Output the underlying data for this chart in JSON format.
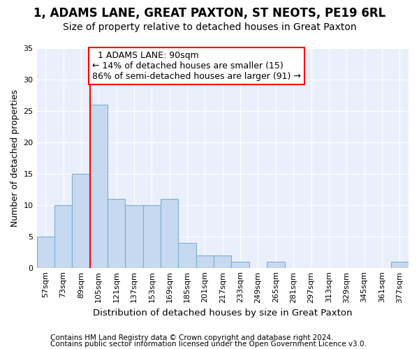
{
  "title": "1, ADAMS LANE, GREAT PAXTON, ST NEOTS, PE19 6RL",
  "subtitle": "Size of property relative to detached houses in Great Paxton",
  "xlabel": "Distribution of detached houses by size in Great Paxton",
  "ylabel": "Number of detached properties",
  "footnote1": "Contains HM Land Registry data © Crown copyright and database right 2024.",
  "footnote2": "Contains public sector information licensed under the Open Government Licence v3.0.",
  "bins": [
    "57sqm",
    "73sqm",
    "89sqm",
    "105sqm",
    "121sqm",
    "137sqm",
    "153sqm",
    "169sqm",
    "185sqm",
    "201sqm",
    "217sqm",
    "233sqm",
    "249sqm",
    "265sqm",
    "281sqm",
    "297sqm",
    "313sqm",
    "329sqm",
    "345sqm",
    "361sqm",
    "377sqm"
  ],
  "values": [
    5,
    10,
    15,
    26,
    11,
    10,
    10,
    11,
    4,
    2,
    2,
    1,
    0,
    1,
    0,
    0,
    0,
    0,
    0,
    0,
    1
  ],
  "bar_color": "#c6d9f0",
  "bar_edge_color": "#7bafd4",
  "background_color": "#eaf0fb",
  "grid_color": "#ffffff",
  "annotation_text": "  1 ADAMS LANE: 90sqm\n← 14% of detached houses are smaller (15)\n86% of semi-detached houses are larger (91) →",
  "annotation_box_color": "white",
  "annotation_box_edge": "red",
  "vline_color": "red",
  "ylim": [
    0,
    35
  ],
  "yticks": [
    0,
    5,
    10,
    15,
    20,
    25,
    30,
    35
  ],
  "title_fontsize": 12,
  "subtitle_fontsize": 10,
  "xlabel_fontsize": 9.5,
  "ylabel_fontsize": 9,
  "tick_fontsize": 8,
  "annot_fontsize": 9,
  "footnote_fontsize": 7.5
}
